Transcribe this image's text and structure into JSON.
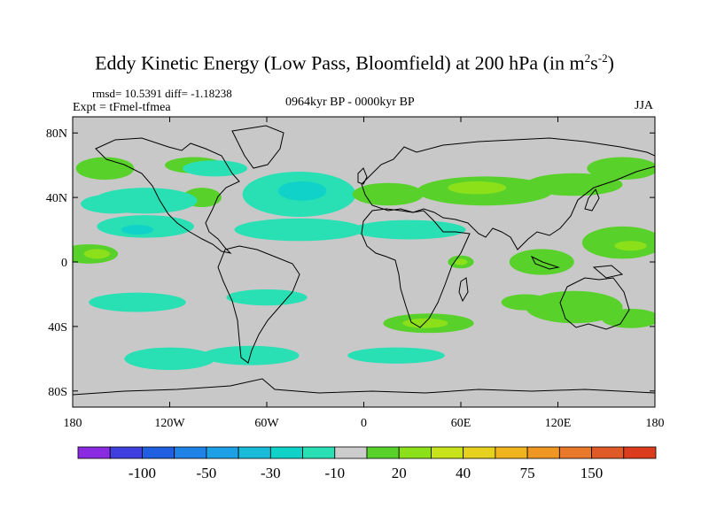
{
  "title_main": "Eddy Kinetic Energy (Low Pass, Bloomfield) at 200 hPa (in m",
  "title_sup1": "2",
  "title_s": "s",
  "title_sup2": "-2",
  "title_close": ")",
  "rmsd_text": "rmsd= 10.5391 diff= -1.18238",
  "expt_text": "Expt = tFmel-tfmea",
  "period_text": "0964kyr BP - 0000kyr BP",
  "season_text": "JJA",
  "chart_data": {
    "type": "heatmap",
    "title": "Eddy Kinetic Energy (Low Pass, Bloomfield) at 200 hPa (in m2s-2)",
    "projection": "cylindrical-equidistant",
    "x_range": [
      -180,
      180
    ],
    "y_range": [
      -90,
      90
    ],
    "x_ticks": [
      {
        "value": -180,
        "label": "180"
      },
      {
        "value": -120,
        "label": "120W"
      },
      {
        "value": -60,
        "label": "60W"
      },
      {
        "value": 0,
        "label": "0"
      },
      {
        "value": 60,
        "label": "60E"
      },
      {
        "value": 120,
        "label": "120E"
      },
      {
        "value": 180,
        "label": "180"
      }
    ],
    "y_ticks": [
      {
        "value": 80,
        "label": "80N"
      },
      {
        "value": 40,
        "label": "40N"
      },
      {
        "value": 0,
        "label": "0"
      },
      {
        "value": -40,
        "label": "40S"
      },
      {
        "value": -80,
        "label": "80S"
      }
    ],
    "background_color": "#c8c8c8",
    "colorbar": {
      "colors": [
        "#8a2be2",
        "#3f3fe0",
        "#2060e0",
        "#1e82e6",
        "#1ea0e6",
        "#18bcd8",
        "#10d2c8",
        "#28e0b4",
        "#cccccc",
        "#58d22a",
        "#8ce01a",
        "#c8e21c",
        "#e6d21e",
        "#f0b41e",
        "#f09622",
        "#e8782a",
        "#e05a28",
        "#dc3c1e"
      ],
      "labels": [
        {
          "after_box": 2,
          "label": "-100"
        },
        {
          "after_box": 4,
          "label": "-50"
        },
        {
          "after_box": 6,
          "label": "-30"
        },
        {
          "after_box": 8,
          "label": "-10"
        },
        {
          "after_box": 10,
          "label": "20"
        },
        {
          "after_box": 12,
          "label": "40"
        },
        {
          "after_box": 14,
          "label": "75"
        },
        {
          "after_box": 16,
          "label": "150"
        }
      ]
    },
    "anomalies": [
      {
        "name": "n-pacific-pos",
        "lon": -160,
        "lat": 58,
        "rlon": 18,
        "rlat": 7,
        "level": "pos1"
      },
      {
        "name": "n-pacific-pos2",
        "lon": -105,
        "lat": 60,
        "rlon": 18,
        "rlat": 5,
        "level": "pos1"
      },
      {
        "name": "n-america-pos",
        "lon": -100,
        "lat": 40,
        "rlon": 12,
        "rlat": 6,
        "level": "pos1"
      },
      {
        "name": "canada-neg",
        "lon": -92,
        "lat": 58,
        "rlon": 20,
        "rlat": 5,
        "level": "neg1"
      },
      {
        "name": "n-atlantic-neg",
        "lon": -40,
        "lat": 42,
        "rlon": 35,
        "rlat": 14,
        "level": "neg1"
      },
      {
        "name": "n-atlantic-neg-core",
        "lon": -38,
        "lat": 44,
        "rlon": 15,
        "rlat": 6,
        "level": "neg2"
      },
      {
        "name": "ne-pacific-neg",
        "lon": -135,
        "lat": 38,
        "rlon": 32,
        "rlat": 8,
        "level": "neg1"
      },
      {
        "name": "nw-pacific-neg2",
        "lon": -155,
        "lat": 36,
        "rlon": 20,
        "rlat": 6,
        "level": "neg1"
      },
      {
        "name": "c-america-neg",
        "lon": -135,
        "lat": 22,
        "rlon": 30,
        "rlat": 7,
        "level": "neg1"
      },
      {
        "name": "c-america-neg-core",
        "lon": -140,
        "lat": 20,
        "rlon": 10,
        "rlat": 3,
        "level": "neg2"
      },
      {
        "name": "atl-tropics-neg",
        "lon": -40,
        "lat": 20,
        "rlon": 40,
        "rlat": 7,
        "level": "neg1"
      },
      {
        "name": "n-africa-neg",
        "lon": 28,
        "lat": 20,
        "rlon": 35,
        "rlat": 6,
        "level": "neg1"
      },
      {
        "name": "eurasia-pos-w",
        "lon": 15,
        "lat": 42,
        "rlon": 22,
        "rlat": 7,
        "level": "pos1"
      },
      {
        "name": "eurasia-pos-c",
        "lon": 75,
        "lat": 44,
        "rlon": 42,
        "rlat": 9,
        "level": "pos1"
      },
      {
        "name": "eurasia-pos-core",
        "lon": 70,
        "lat": 46,
        "rlon": 18,
        "rlat": 4,
        "level": "pos2"
      },
      {
        "name": "e-asia-pos",
        "lon": 130,
        "lat": 48,
        "rlon": 30,
        "rlat": 7,
        "level": "pos1"
      },
      {
        "name": "nw-pac-pos",
        "lon": 160,
        "lat": 58,
        "rlon": 22,
        "rlat": 7,
        "level": "pos1"
      },
      {
        "name": "w-pac-trop-pos",
        "lon": 160,
        "lat": 12,
        "rlon": 25,
        "rlat": 10,
        "level": "pos1"
      },
      {
        "name": "w-pac-trop-core",
        "lon": 165,
        "lat": 10,
        "rlon": 10,
        "rlat": 3,
        "level": "pos2"
      },
      {
        "name": "ind-ocean-pos",
        "lon": 110,
        "lat": 0,
        "rlon": 20,
        "rlat": 8,
        "level": "pos1"
      },
      {
        "name": "arabia-pos",
        "lon": 60,
        "lat": 0,
        "rlon": 8,
        "rlat": 4,
        "level": "pos1"
      },
      {
        "name": "arabia-pos-core",
        "lon": 60,
        "lat": 0,
        "rlon": 4,
        "rlat": 2,
        "level": "pos2"
      },
      {
        "name": "e-pac-pos",
        "lon": -170,
        "lat": 5,
        "rlon": 18,
        "rlat": 6,
        "level": "pos1"
      },
      {
        "name": "e-pac-pos-core",
        "lon": -165,
        "lat": 5,
        "rlon": 8,
        "rlat": 3,
        "level": "pos2"
      },
      {
        "name": "s-pacific-neg",
        "lon": -140,
        "lat": -25,
        "rlon": 30,
        "rlat": 6,
        "level": "neg1"
      },
      {
        "name": "s-america-neg",
        "lon": -60,
        "lat": -22,
        "rlon": 25,
        "rlat": 5,
        "level": "neg1"
      },
      {
        "name": "s-ocean-neg",
        "lon": -120,
        "lat": -60,
        "rlon": 28,
        "rlat": 7,
        "level": "neg1"
      },
      {
        "name": "s-ocean-neg2",
        "lon": -70,
        "lat": -58,
        "rlon": 30,
        "rlat": 6,
        "level": "neg1"
      },
      {
        "name": "s-atl-neg",
        "lon": 20,
        "lat": -58,
        "rlon": 30,
        "rlat": 5,
        "level": "neg1"
      },
      {
        "name": "s-indian-pos",
        "lon": 40,
        "lat": -38,
        "rlon": 28,
        "rlat": 6,
        "level": "pos1"
      },
      {
        "name": "s-indian-pos-core",
        "lon": 38,
        "lat": -38,
        "rlon": 14,
        "rlat": 3,
        "level": "pos2"
      },
      {
        "name": "australia-pos",
        "lon": 130,
        "lat": -28,
        "rlon": 30,
        "rlat": 10,
        "level": "pos1"
      },
      {
        "name": "s-indian-pos2",
        "lon": 100,
        "lat": -25,
        "rlon": 15,
        "rlat": 5,
        "level": "pos1"
      },
      {
        "name": "sw-pacific-pos",
        "lon": 165,
        "lat": -35,
        "rlon": 18,
        "rlat": 6,
        "level": "pos1"
      }
    ],
    "level_colors": {
      "neg1": "#28e0b4",
      "neg2": "#10d2c8",
      "pos1": "#58d22a",
      "pos2": "#8ce01a"
    }
  }
}
